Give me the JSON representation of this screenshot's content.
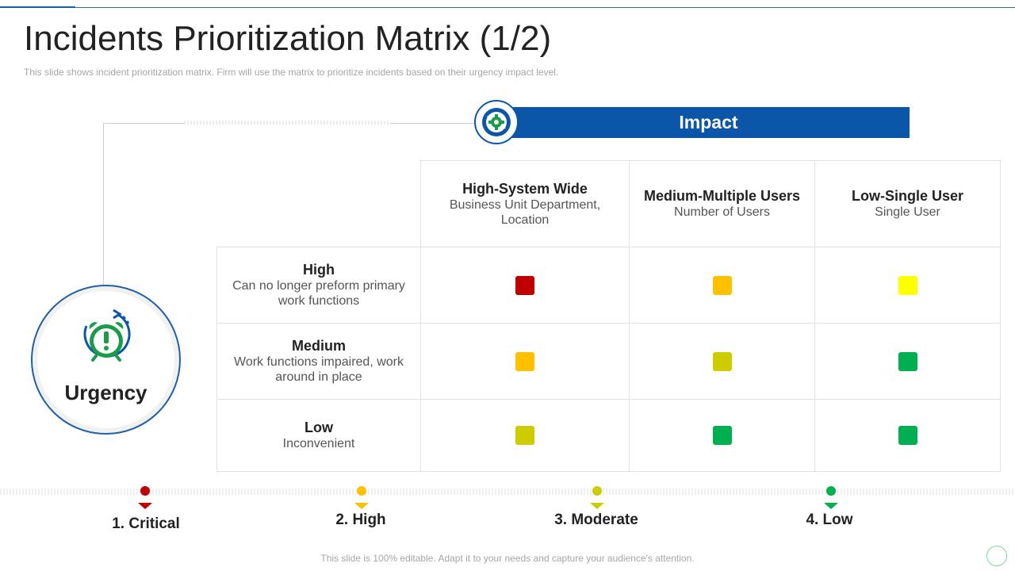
{
  "slide": {
    "title": "Incidents Prioritization Matrix (1/2)",
    "subtitle": "This slide shows incident prioritization matrix. Firm will use the matrix to prioritize incidents based on their urgency impact level.",
    "footer": "This slide is 100% editable. Adapt it to your needs and capture your audience's attention."
  },
  "impact": {
    "label": "Impact",
    "icon": "gear-cycle-icon",
    "columns": [
      {
        "title": "High-System Wide",
        "sub": "Business Unit Department, Location"
      },
      {
        "title": "Medium-Multiple Users",
        "sub": "Number of Users"
      },
      {
        "title": "Low-Single User",
        "sub": "Single User"
      }
    ]
  },
  "urgency": {
    "label": "Urgency",
    "icon": "alarm-clock-icon",
    "rows": [
      {
        "title": "High",
        "sub": "Can no longer preform primary work functions"
      },
      {
        "title": "Medium",
        "sub": "Work functions impaired, work around in place"
      },
      {
        "title": "Low",
        "sub": "Inconvenient"
      }
    ]
  },
  "matrix_colors": [
    [
      "#c00000",
      "#ffc000",
      "#ffff00"
    ],
    [
      "#ffc000",
      "#cccc00",
      "#00b050"
    ],
    [
      "#cccc00",
      "#00b050",
      "#00b050"
    ]
  ],
  "legend": [
    {
      "label": "1. Critical",
      "color": "#c00000"
    },
    {
      "label": "2. High",
      "color": "#ffc000"
    },
    {
      "label": "3. Moderate",
      "color": "#cccc00"
    },
    {
      "label": "4. Low",
      "color": "#00b050"
    }
  ]
}
